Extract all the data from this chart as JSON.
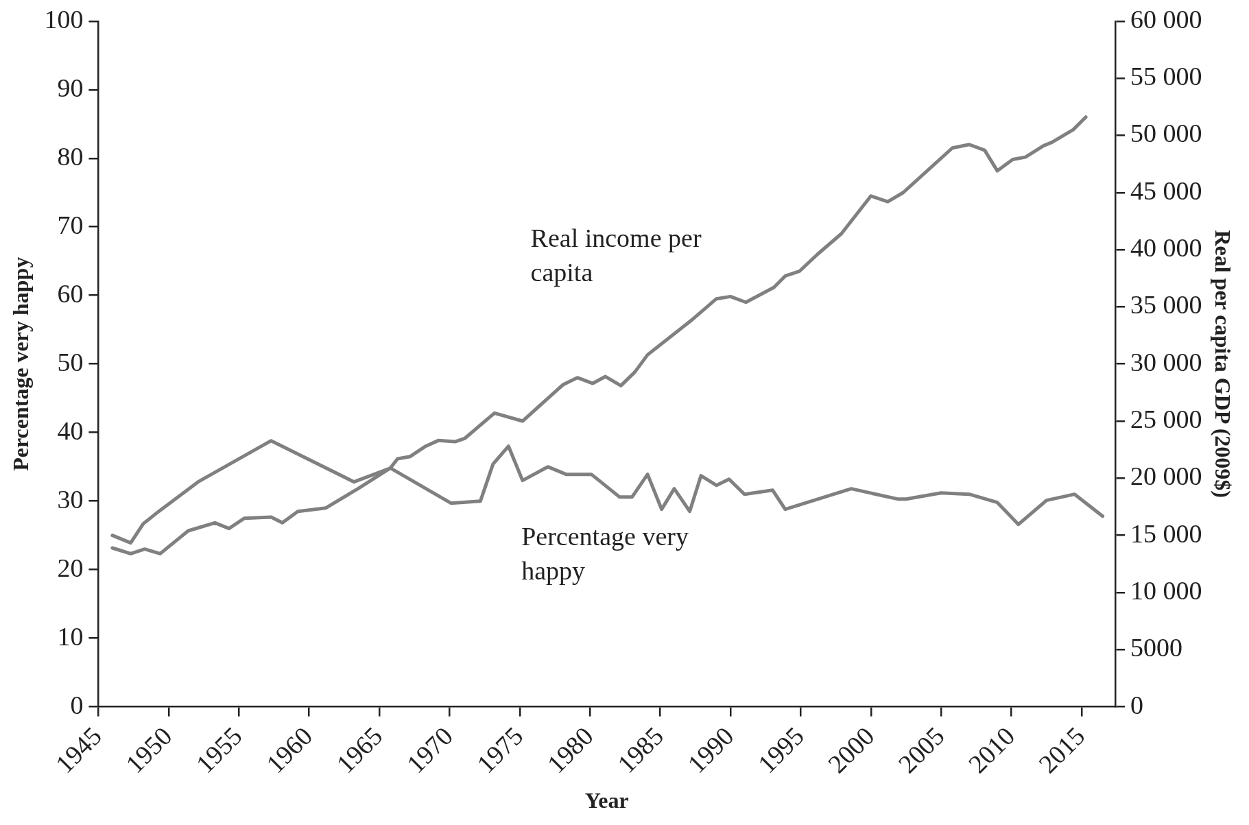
{
  "chart_data": {
    "type": "line",
    "xlabel": "Year",
    "ylabel": "Percentage very happy",
    "y2label": "Real per capita GDP (2009$)",
    "xlim": [
      1945,
      2017.4
    ],
    "xticks": [
      1945,
      1950,
      1955,
      1960,
      1965,
      1970,
      1975,
      1980,
      1985,
      1990,
      1995,
      2000,
      2005,
      2010,
      2015
    ],
    "ylim": [
      0,
      100
    ],
    "yticks": [
      0,
      10,
      20,
      30,
      40,
      50,
      60,
      70,
      80,
      90,
      100
    ],
    "y2lim": [
      0,
      60000
    ],
    "y2ticks": [
      0,
      5000,
      {
        "value": 10000,
        "label": "10 000"
      },
      {
        "value": 15000,
        "label": "15 000"
      },
      {
        "value": 20000,
        "label": "20 000"
      },
      {
        "value": 25000,
        "label": "25 000"
      },
      {
        "value": 30000,
        "label": "30 000"
      },
      {
        "value": 35000,
        "label": "35 000"
      },
      {
        "value": 40000,
        "label": "40 000"
      },
      {
        "value": 45000,
        "label": "45 000"
      },
      {
        "value": 50000,
        "label": "50 000"
      },
      {
        "value": 55000,
        "label": "55 000"
      },
      {
        "value": 60000,
        "label": "60 000"
      }
    ],
    "grid": false,
    "legend": false,
    "marker": "none",
    "line_style": "solid",
    "series": [
      {
        "name": "Real income per capita",
        "color": "#808080",
        "axis": "y2",
        "x": [
          1946,
          1947.3,
          1948.3,
          1949.4,
          1951.4,
          1953.3,
          1954.3,
          1955.4,
          1957.3,
          1958.1,
          1959.2,
          1961.2,
          1963.5,
          1965.8,
          1966.3,
          1967.2,
          1968.3,
          1969.2,
          1970.4,
          1971.1,
          1973.2,
          1975.2,
          1978.1,
          1979.1,
          1980.2,
          1981.1,
          1982.2,
          1983.2,
          1984.1,
          1987.3,
          1989,
          1990,
          1991.1,
          1993.1,
          1993.9,
          1994.9,
          1996.2,
          1997.9,
          2000,
          2001.2,
          2002.3,
          2005.8,
          2007,
          2008.1,
          2009,
          2010.1,
          2011,
          2012.3,
          2012.9,
          2014.4,
          2015.3
        ],
        "values": [
          13900,
          13400,
          13800,
          13400,
          15400,
          16100,
          15600,
          16500,
          16600,
          16100,
          17100,
          17400,
          19100,
          20900,
          21700,
          21900,
          22800,
          23300,
          23200,
          23500,
          25700,
          25000,
          28200,
          28800,
          28300,
          28900,
          28100,
          29300,
          30800,
          33900,
          35700,
          35900,
          35400,
          36700,
          37700,
          38100,
          39600,
          41400,
          44700,
          44200,
          45000,
          48900,
          49200,
          48700,
          46900,
          47900,
          48100,
          49100,
          49400,
          50500,
          51600
        ]
      },
      {
        "name": "Percentage very happy",
        "color": "#808080",
        "x": [
          1946,
          1947.3,
          1948.2,
          1949.3,
          1952.1,
          1957.3,
          1963.2,
          1965.8,
          1970.1,
          1972.2,
          1973.1,
          1974.2,
          1975.2,
          1977,
          1978.3,
          1980.1,
          1982.1,
          1983,
          1984.1,
          1985.1,
          1986,
          1987.1,
          1987.9,
          1989,
          1989.9,
          1991,
          1993,
          1993.9,
          1998.6,
          2001.9,
          2002.5,
          2005,
          2007,
          2009,
          2010.5,
          2012.5,
          2014.5,
          2016.5
        ],
        "values": [
          25,
          23.9,
          26.7,
          28.5,
          32.8,
          38.8,
          32.8,
          34.8,
          29.7,
          30,
          35.4,
          38,
          33,
          35,
          33.9,
          33.9,
          30.6,
          30.6,
          33.9,
          28.8,
          31.8,
          28.5,
          33.7,
          32.3,
          33.2,
          31,
          31.6,
          28.8,
          31.8,
          30.3,
          30.3,
          31.2,
          31,
          29.8,
          26.6,
          30.1,
          31,
          27.8
        ]
      }
    ]
  }
}
